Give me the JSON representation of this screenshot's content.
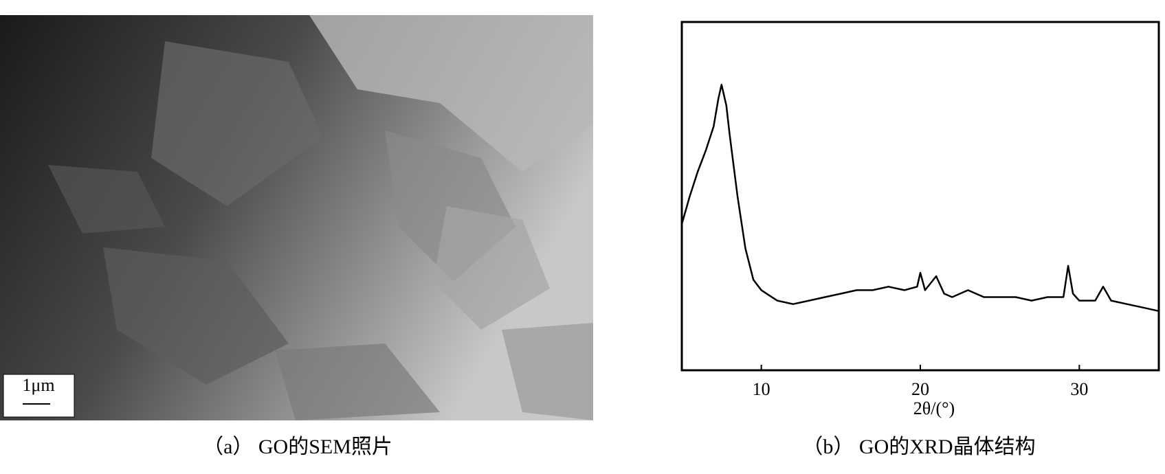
{
  "figure": {
    "sem_caption": "（a） GO的SEM照片",
    "scale_bar": "1μm"
  },
  "chart_data": {
    "type": "line",
    "caption": "（b） GO的XRD晶体结构",
    "x_label": "2θ/(°)",
    "x": [
      5,
      5.5,
      6,
      6.5,
      7,
      7.3,
      7.5,
      7.8,
      8,
      8.5,
      9,
      9.5,
      10,
      11,
      12,
      13,
      14,
      15,
      16,
      17,
      18,
      19,
      19.8,
      20,
      20.3,
      21,
      21.5,
      22,
      23,
      24,
      25,
      26,
      27,
      28,
      29,
      29.3,
      29.6,
      30,
      31,
      31.5,
      32,
      33,
      34,
      35
    ],
    "values": [
      42,
      50,
      57,
      63,
      70,
      78,
      82,
      76,
      68,
      50,
      35,
      26,
      23,
      20,
      19,
      20,
      21,
      22,
      23,
      23,
      24,
      23,
      24,
      28,
      23,
      27,
      22,
      21,
      23,
      21,
      21,
      21,
      20,
      21,
      21,
      30,
      22,
      20,
      20,
      24,
      20,
      19,
      18,
      17
    ],
    "color": "#000000",
    "xlim": [
      5,
      35
    ],
    "ylim": [
      0,
      100
    ],
    "xticks": [
      10,
      20,
      30
    ]
  }
}
